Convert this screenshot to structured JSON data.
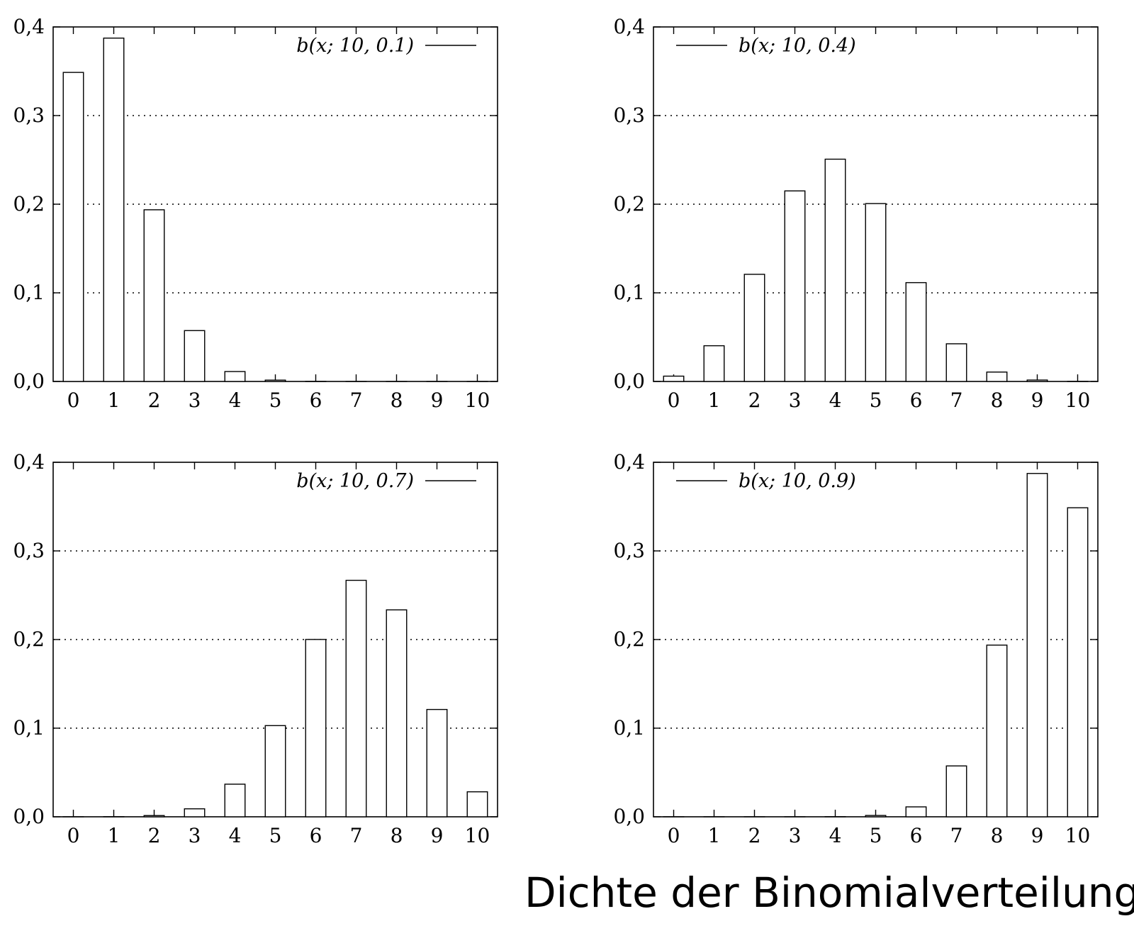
{
  "caption": "Dichte der Binomialverteilung",
  "colors": {
    "bar_fill": "#ffffff",
    "bar_stroke": "#000000",
    "grid": "#000000",
    "axis": "#000000"
  },
  "chart_data": [
    {
      "type": "bar",
      "legend": "b(x; 10, 0.1)",
      "legend_position": "top-right",
      "categories": [
        "0",
        "1",
        "2",
        "3",
        "4",
        "5",
        "6",
        "7",
        "8",
        "9",
        "10"
      ],
      "values": [
        0.3487,
        0.3874,
        0.1937,
        0.0574,
        0.0112,
        0.0015,
        0.0001,
        0.0,
        0.0,
        0.0,
        0.0
      ],
      "ylim": [
        0,
        0.4
      ],
      "yticks": [
        "0,0",
        "0,1",
        "0,2",
        "0,3",
        "0,4"
      ],
      "grid": "horizontal dotted"
    },
    {
      "type": "bar",
      "legend": "b(x; 10, 0.4)",
      "legend_position": "top-left",
      "categories": [
        "0",
        "1",
        "2",
        "3",
        "4",
        "5",
        "6",
        "7",
        "8",
        "9",
        "10"
      ],
      "values": [
        0.006,
        0.0403,
        0.1209,
        0.215,
        0.2508,
        0.2007,
        0.1115,
        0.0425,
        0.0106,
        0.0016,
        0.0001
      ],
      "ylim": [
        0,
        0.4
      ],
      "yticks": [
        "0,0",
        "0,1",
        "0,2",
        "0,3",
        "0,4"
      ],
      "grid": "horizontal dotted"
    },
    {
      "type": "bar",
      "legend": "b(x; 10, 0.7)",
      "legend_position": "top-right",
      "categories": [
        "0",
        "1",
        "2",
        "3",
        "4",
        "5",
        "6",
        "7",
        "8",
        "9",
        "10"
      ],
      "values": [
        0.0,
        0.0001,
        0.0014,
        0.009,
        0.0368,
        0.1029,
        0.2001,
        0.2668,
        0.2335,
        0.1211,
        0.0282
      ],
      "ylim": [
        0,
        0.4
      ],
      "yticks": [
        "0,0",
        "0,1",
        "0,2",
        "0,3",
        "0,4"
      ],
      "grid": "horizontal dotted"
    },
    {
      "type": "bar",
      "legend": "b(x; 10, 0.9)",
      "legend_position": "top-left",
      "categories": [
        "0",
        "1",
        "2",
        "3",
        "4",
        "5",
        "6",
        "7",
        "8",
        "9",
        "10"
      ],
      "values": [
        0.0,
        0.0,
        0.0,
        0.0,
        0.0001,
        0.0015,
        0.0112,
        0.0574,
        0.1937,
        0.3874,
        0.3487
      ],
      "ylim": [
        0,
        0.4
      ],
      "yticks": [
        "0,0",
        "0,1",
        "0,2",
        "0,3",
        "0,4"
      ],
      "grid": "horizontal dotted"
    }
  ]
}
